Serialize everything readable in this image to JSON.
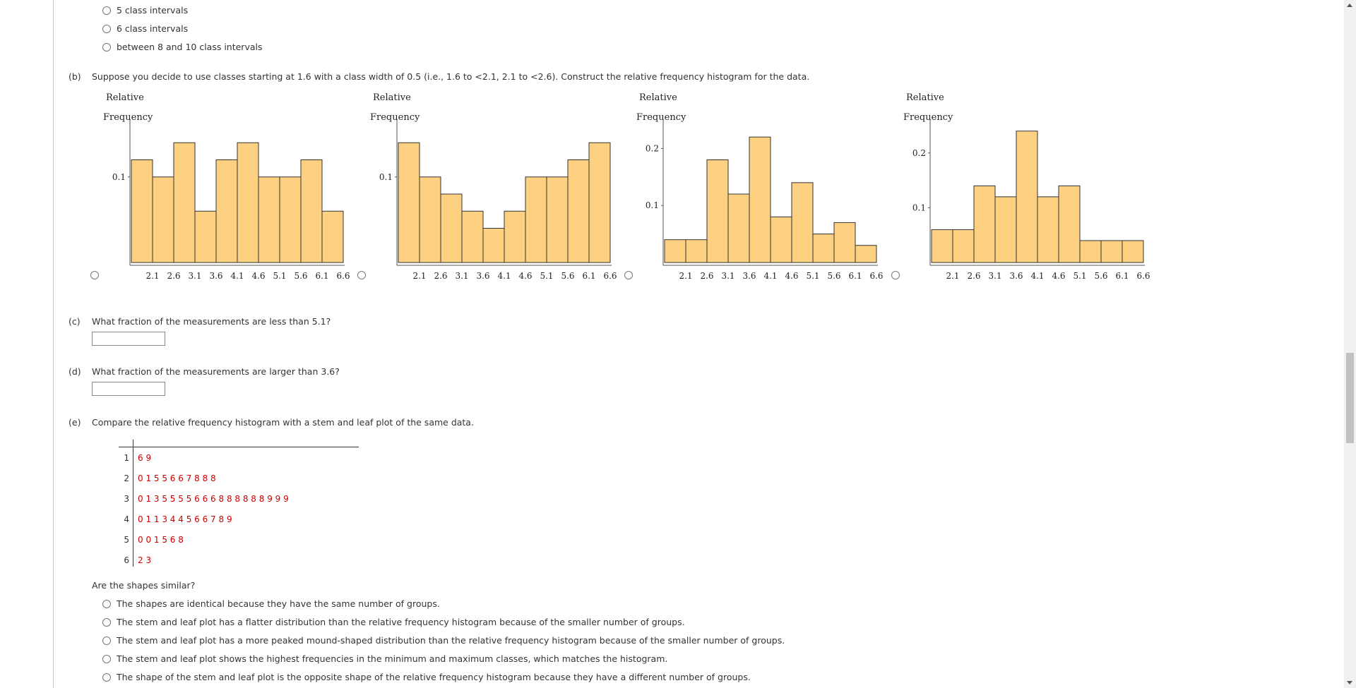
{
  "part_a": {
    "options": [
      "5 class intervals",
      "6 class intervals",
      "between 8 and 10 class intervals"
    ]
  },
  "part_b": {
    "label": "(b)",
    "text": "Suppose you decide to use classes starting at 1.6 with a class width of 0.5 (i.e., 1.6 to <2.1, 2.1 to <2.6). Construct the relative frequency histogram for the data.",
    "ylabel_line1": "Relative",
    "ylabel_line2": "Frequency"
  },
  "chart_data": [
    {
      "type": "bar",
      "ylabel": "Relative Frequency",
      "categories": [
        "1.6-2.1",
        "2.1-2.6",
        "2.6-3.1",
        "3.1-3.6",
        "3.6-4.1",
        "4.1-4.6",
        "4.6-5.1",
        "5.1-5.6",
        "5.6-6.1",
        "6.1-6.6"
      ],
      "x_tick_labels": [
        "2.1",
        "2.6",
        "3.1",
        "3.6",
        "4.1",
        "4.6",
        "5.1",
        "5.6",
        "6.1",
        "6.6"
      ],
      "y_ticks": [
        {
          "value": 0.1,
          "label": "0.1"
        }
      ],
      "values": [
        0.12,
        0.1,
        0.14,
        0.06,
        0.12,
        0.14,
        0.1,
        0.1,
        0.12,
        0.06
      ],
      "ylim": [
        0,
        0.16
      ]
    },
    {
      "type": "bar",
      "ylabel": "Relative Frequency",
      "categories": [
        "1.6-2.1",
        "2.1-2.6",
        "2.6-3.1",
        "3.1-3.6",
        "3.6-4.1",
        "4.1-4.6",
        "4.6-5.1",
        "5.1-5.6",
        "5.6-6.1",
        "6.1-6.6"
      ],
      "x_tick_labels": [
        "2.1",
        "2.6",
        "3.1",
        "3.6",
        "4.1",
        "4.6",
        "5.1",
        "5.6",
        "6.1",
        "6.6"
      ],
      "y_ticks": [
        {
          "value": 0.1,
          "label": "0.1"
        }
      ],
      "values": [
        0.14,
        0.1,
        0.08,
        0.06,
        0.04,
        0.06,
        0.1,
        0.1,
        0.12,
        0.14
      ],
      "ylim": [
        0,
        0.16
      ]
    },
    {
      "type": "bar",
      "ylabel": "Relative Frequency",
      "categories": [
        "1.6-2.1",
        "2.1-2.6",
        "2.6-3.1",
        "3.1-3.6",
        "3.6-4.1",
        "4.1-4.6",
        "4.6-5.1",
        "5.1-5.6",
        "5.6-6.1",
        "6.1-6.6"
      ],
      "x_tick_labels": [
        "2.1",
        "2.6",
        "3.1",
        "3.6",
        "4.1",
        "4.6",
        "5.1",
        "5.6",
        "6.1",
        "6.6"
      ],
      "y_ticks": [
        {
          "value": 0.1,
          "label": "0.1"
        },
        {
          "value": 0.2,
          "label": "0.2"
        }
      ],
      "values": [
        0.04,
        0.04,
        0.18,
        0.12,
        0.22,
        0.08,
        0.14,
        0.05,
        0.07,
        0.03
      ],
      "ylim": [
        0,
        0.24
      ]
    },
    {
      "type": "bar",
      "ylabel": "Relative Frequency",
      "categories": [
        "1.6-2.1",
        "2.1-2.6",
        "2.6-3.1",
        "3.1-3.6",
        "3.6-4.1",
        "4.1-4.6",
        "4.6-5.1",
        "5.1-5.6",
        "5.6-6.1",
        "6.1-6.6"
      ],
      "x_tick_labels": [
        "2.1",
        "2.6",
        "3.1",
        "3.6",
        "4.1",
        "4.6",
        "5.1",
        "5.6",
        "6.1",
        "6.6"
      ],
      "y_ticks": [
        {
          "value": 0.1,
          "label": "0.1"
        },
        {
          "value": 0.2,
          "label": "0.2"
        }
      ],
      "values": [
        0.06,
        0.06,
        0.14,
        0.12,
        0.24,
        0.12,
        0.14,
        0.04,
        0.04,
        0.04
      ],
      "ylim": [
        0,
        0.25
      ]
    }
  ],
  "part_c": {
    "label": "(c)",
    "text": "What fraction of the measurements are less than 5.1?",
    "answer_value": ""
  },
  "part_d": {
    "label": "(d)",
    "text": "What fraction of the measurements are larger than 3.6?",
    "answer_value": ""
  },
  "part_e": {
    "label": "(e)",
    "text": "Compare the relative frequency histogram with a stem and leaf plot of the same data.",
    "stem_leaf": [
      {
        "stem": "1",
        "leaves": "6 9"
      },
      {
        "stem": "2",
        "leaves": "0 1 5 5 6 6 7 8 8 8"
      },
      {
        "stem": "3",
        "leaves": "0 1 3 5 5 5 5 6 6 6 8 8 8 8 8 8 9 9 9"
      },
      {
        "stem": "4",
        "leaves": "0 1 1 3 4 4 5 6 6 7 8 9"
      },
      {
        "stem": "5",
        "leaves": "0 0 1 5 6 8"
      },
      {
        "stem": "6",
        "leaves": "2 3"
      }
    ],
    "question": "Are the shapes similar?",
    "options": [
      "The shapes are identical because they have the same number of groups.",
      "The stem and leaf plot has a flatter distribution than the relative frequency histogram because of the smaller number of groups.",
      "The stem and leaf plot has a more peaked mound-shaped distribution than the relative frequency histogram because of the smaller number of groups.",
      "The stem and leaf plot shows the highest frequencies in the minimum and maximum classes, which matches the histogram.",
      "The shape of the stem and leaf plot is the opposite shape of the relative frequency histogram because they have a different number of groups."
    ]
  },
  "colors": {
    "bar_fill": "#fdd082",
    "bar_stroke": "#333333",
    "leaf_text": "#cc0000"
  }
}
